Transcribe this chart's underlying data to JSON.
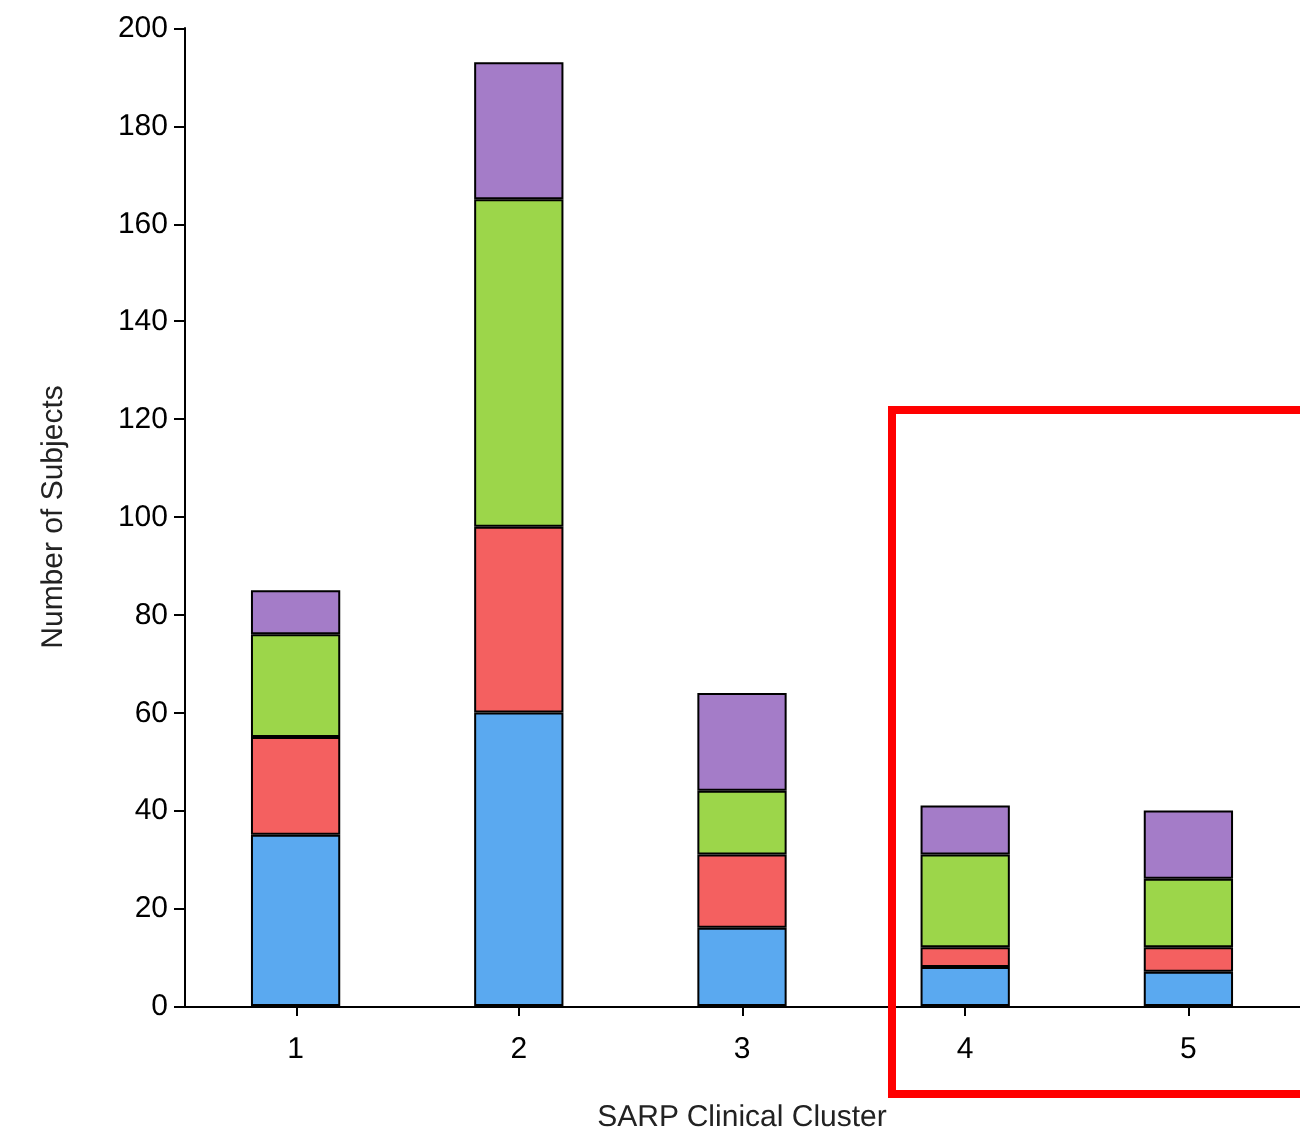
{
  "chart_data": {
    "type": "bar",
    "stacked": true,
    "xlabel": "SARP Clinical Cluster",
    "ylabel": "Number of Subjects",
    "categories": [
      "1",
      "2",
      "3",
      "4",
      "5"
    ],
    "series": [
      {
        "color": "#5aa9f0",
        "values": [
          35,
          60,
          16,
          8,
          7
        ]
      },
      {
        "color": "#f46060",
        "values": [
          20,
          38,
          15,
          4,
          5
        ]
      },
      {
        "color": "#9cd64a",
        "values": [
          21,
          67,
          13,
          19,
          14
        ]
      },
      {
        "color": "#a47cc8",
        "values": [
          9,
          28,
          20,
          10,
          14
        ]
      }
    ],
    "ylim": [
      0,
      200
    ],
    "yticks": [
      0,
      20,
      40,
      60,
      80,
      100,
      120,
      140,
      160,
      180,
      200
    ],
    "grid": false
  }
}
